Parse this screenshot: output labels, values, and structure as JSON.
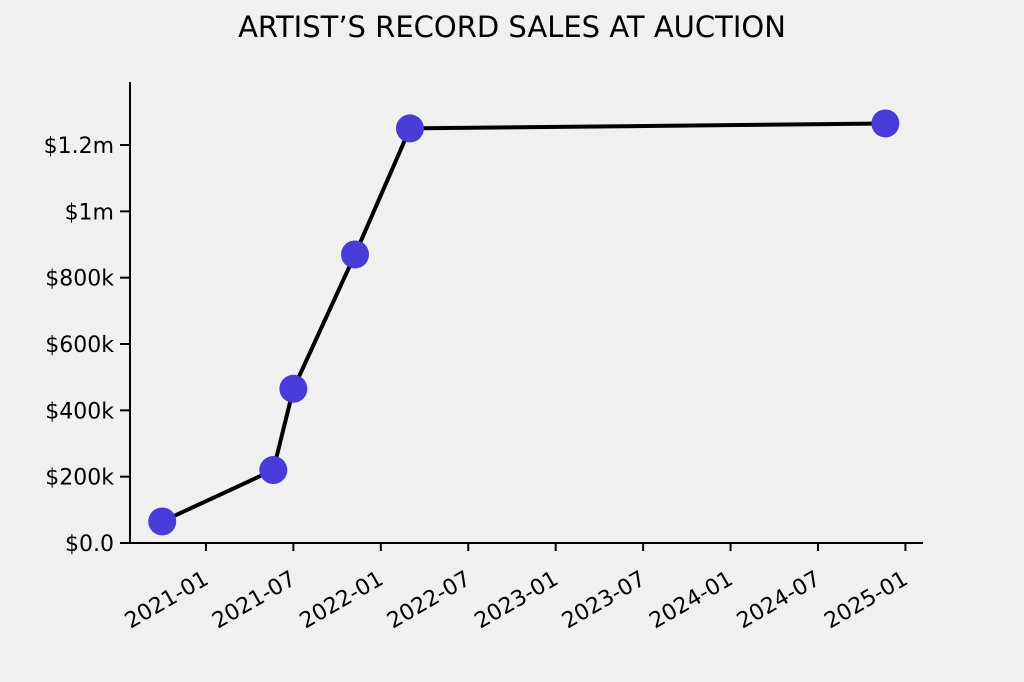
{
  "chart_data": {
    "type": "line",
    "title": "ARTIST’S RECORD SALES AT AUCTION",
    "xlabel": "",
    "ylabel": "",
    "grid": false,
    "legend": false,
    "background_color": "#f0f0f0",
    "line_color": "#000000",
    "marker_color": "#4a3cd9",
    "axis_color": "#000000",
    "points": [
      {
        "date": "2020-10-01",
        "value": 65000
      },
      {
        "date": "2021-05-20",
        "value": 220000
      },
      {
        "date": "2021-07-01",
        "value": 465000
      },
      {
        "date": "2021-11-08",
        "value": 870000
      },
      {
        "date": "2022-03-01",
        "value": 1250000
      },
      {
        "date": "2024-11-20",
        "value": 1265000
      }
    ],
    "x_ticks": [
      {
        "date": "2021-01-01",
        "label": "2021-01"
      },
      {
        "date": "2021-07-01",
        "label": "2021-07"
      },
      {
        "date": "2022-01-01",
        "label": "2022-01"
      },
      {
        "date": "2022-07-01",
        "label": "2022-07"
      },
      {
        "date": "2023-01-01",
        "label": "2023-01"
      },
      {
        "date": "2023-07-01",
        "label": "2023-07"
      },
      {
        "date": "2024-01-01",
        "label": "2024-01"
      },
      {
        "date": "2024-07-01",
        "label": "2024-07"
      },
      {
        "date": "2025-01-01",
        "label": "2025-01"
      }
    ],
    "y_ticks": [
      {
        "value": 0,
        "label": "$0.0"
      },
      {
        "value": 200000,
        "label": "$200k"
      },
      {
        "value": 400000,
        "label": "$400k"
      },
      {
        "value": 600000,
        "label": "$600k"
      },
      {
        "value": 800000,
        "label": "$800k"
      },
      {
        "value": 1000000,
        "label": "$1m"
      },
      {
        "value": 1200000,
        "label": "$1.2m"
      }
    ],
    "xlim": [
      "2020-07-25",
      "2025-02-01"
    ],
    "ylim": [
      0,
      1390000
    ],
    "x_tick_rotation_deg": 30
  }
}
